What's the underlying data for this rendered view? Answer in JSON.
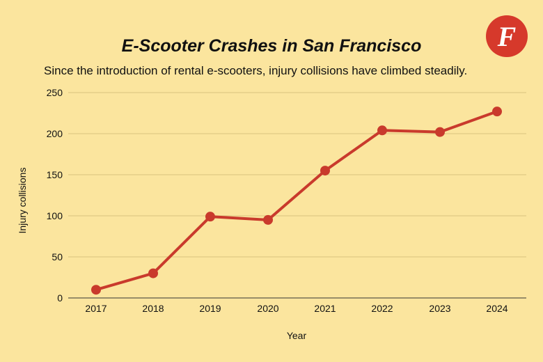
{
  "chart_data": {
    "type": "line",
    "title": "E-Scooter Crashes in San Francisco",
    "subtitle": "Since the introduction of rental e-scooters, injury collisions have climbed steadily.",
    "xlabel": "Year",
    "ylabel": "Injury collisions",
    "ylim": [
      0,
      250
    ],
    "yticks": [
      "0",
      "50",
      "100",
      "150",
      "200",
      "250"
    ],
    "categories": [
      "2017",
      "2018",
      "2019",
      "2020",
      "2021",
      "2022",
      "2023",
      "2024"
    ],
    "series": [
      {
        "values": [
          10,
          30,
          99,
          95,
          155,
          204,
          202,
          227
        ]
      }
    ],
    "grid": true,
    "legend": "none"
  },
  "logo": {
    "letter": "F"
  },
  "colors": {
    "background": "#fbe59e",
    "line": "#c93a2c",
    "gridline": "#d9c27d",
    "logo": "#d6392b"
  }
}
